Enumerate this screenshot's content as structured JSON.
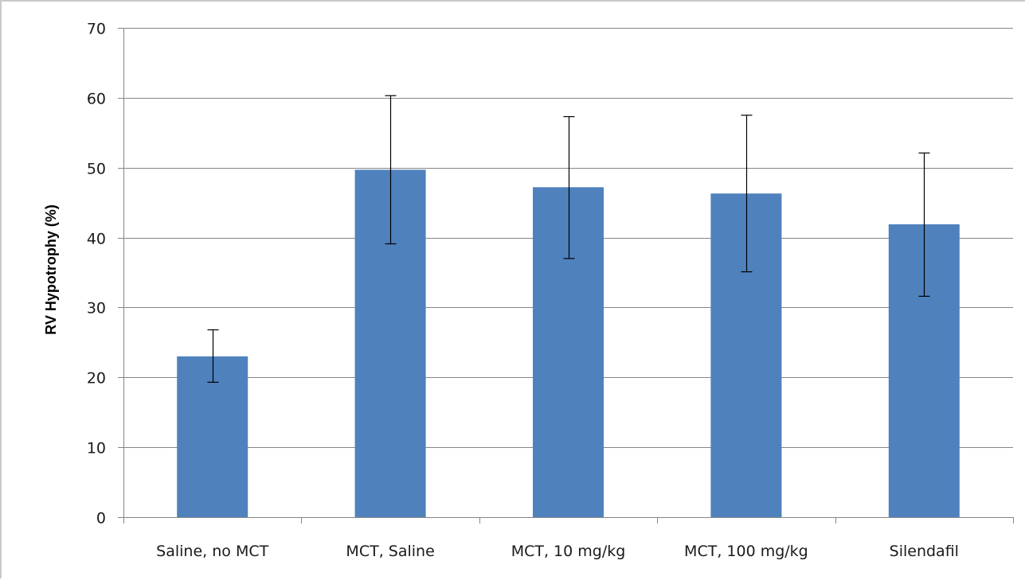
{
  "chart_data": {
    "type": "bar",
    "title": "",
    "xlabel": "",
    "ylabel": "RV Hypotrophy (%)",
    "categories": [
      "Saline, no MCT",
      "MCT, Saline",
      "MCT, 10 mg/kg",
      "MCT, 100 mg/kg",
      "Silendafil"
    ],
    "values": [
      23,
      49.7,
      47.2,
      46.3,
      41.9
    ],
    "error_upper": [
      26.8,
      60.3,
      57.3,
      57.5,
      52.1
    ],
    "error_lower": [
      19.3,
      39.1,
      37.0,
      35.1,
      31.6
    ],
    "ylim": [
      0,
      70
    ],
    "yticks": [
      0,
      10,
      20,
      30,
      40,
      50,
      60,
      70
    ],
    "grid": true,
    "legend": "none",
    "colors": {
      "bar": "#4f81bd",
      "grid": "#868686",
      "axis": "#868686",
      "error_bar": "#000000"
    }
  }
}
